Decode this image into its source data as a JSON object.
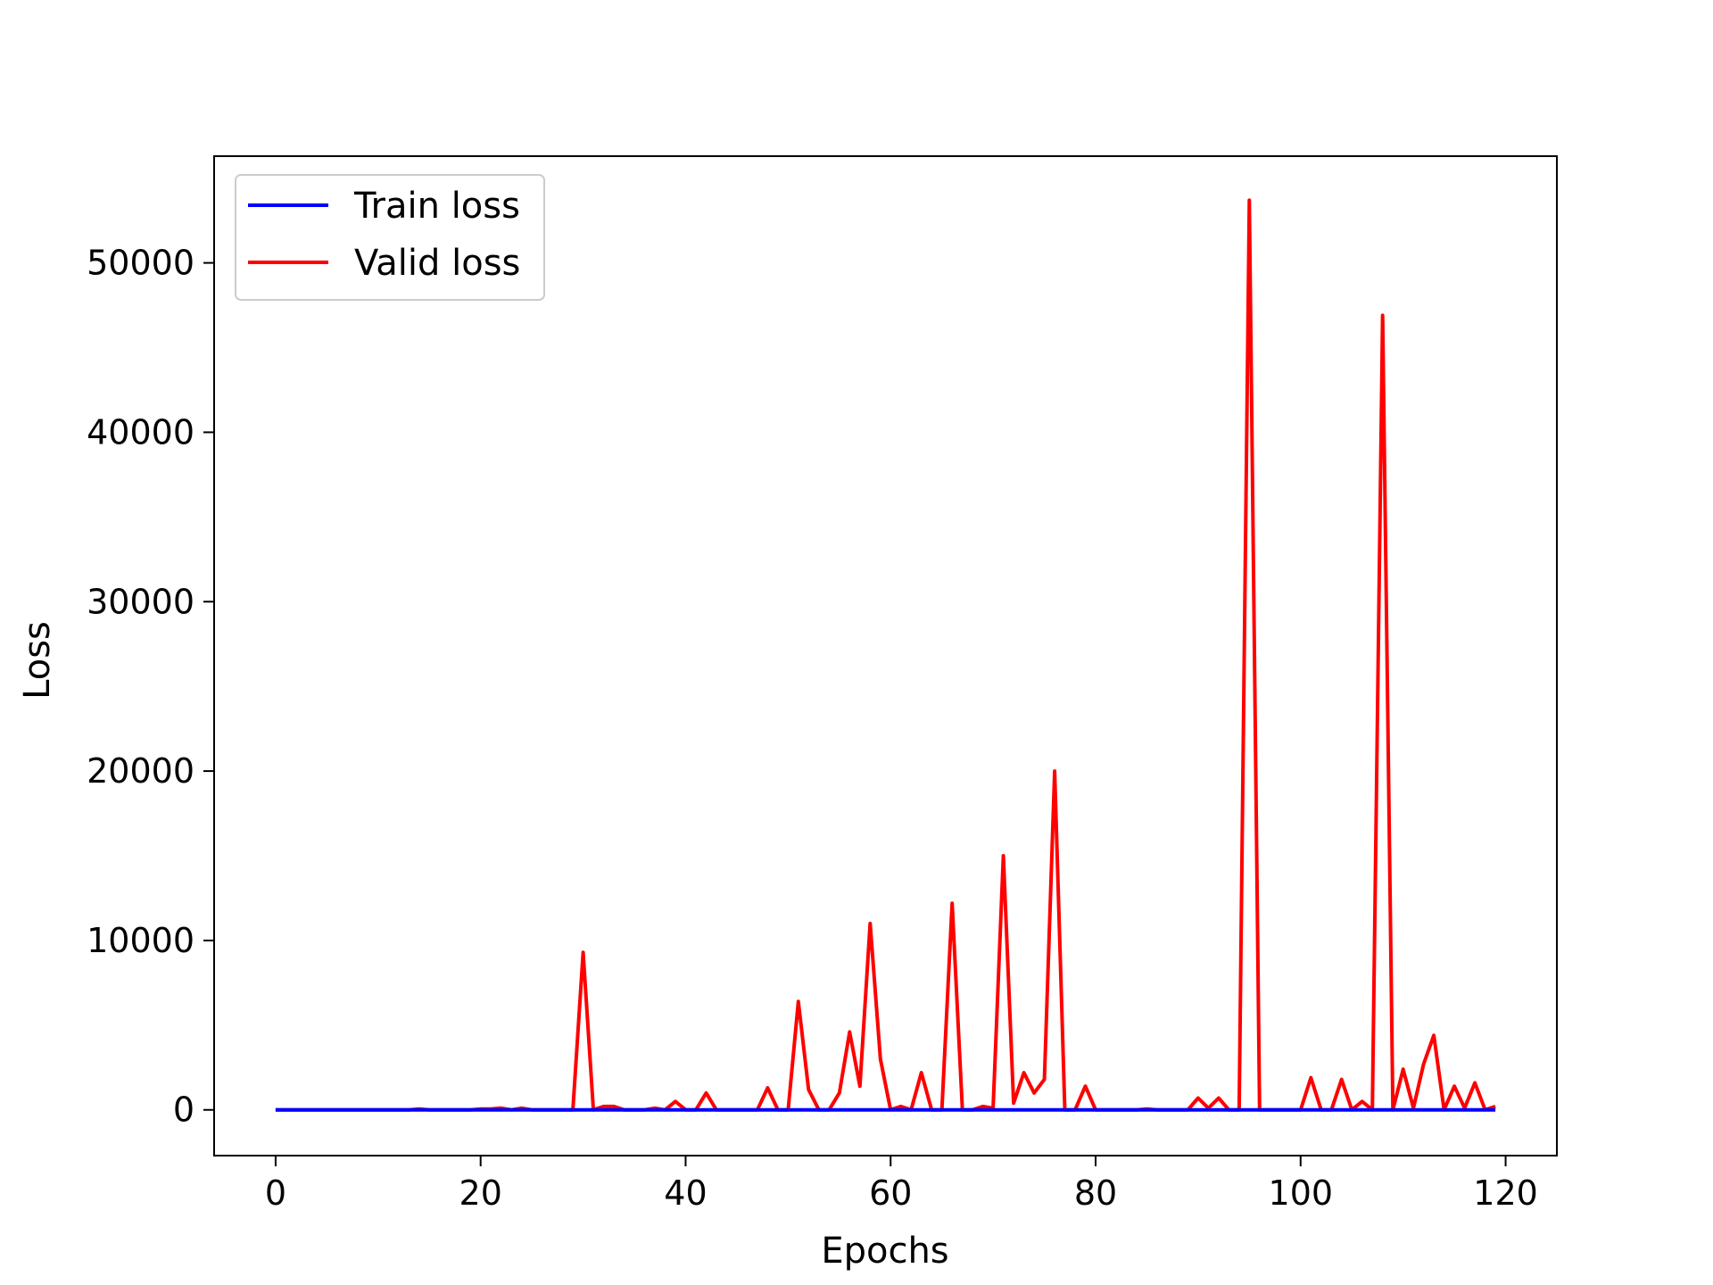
{
  "chart_data": {
    "type": "line",
    "xlabel": "Epochs",
    "ylabel": "Loss",
    "xlim": [
      -6,
      125
    ],
    "ylim": [
      -2700,
      56300
    ],
    "xticks": [
      0,
      20,
      40,
      60,
      80,
      100,
      120
    ],
    "yticks": [
      0,
      10000,
      20000,
      30000,
      40000,
      50000
    ],
    "grid": false,
    "legend": "top-left",
    "series": [
      {
        "name": "Train loss",
        "color": "#0000ff",
        "x": [
          0,
          20,
          40,
          60,
          80,
          100,
          119
        ],
        "y": [
          0,
          0,
          0,
          0,
          0,
          0,
          0
        ]
      },
      {
        "name": "Valid loss",
        "color": "#ff0000",
        "x": [
          0,
          1,
          2,
          3,
          4,
          5,
          6,
          7,
          8,
          9,
          10,
          11,
          12,
          13,
          14,
          15,
          16,
          17,
          18,
          19,
          20,
          21,
          22,
          23,
          24,
          25,
          26,
          27,
          28,
          29,
          30,
          31,
          32,
          33,
          34,
          35,
          36,
          37,
          38,
          39,
          40,
          41,
          42,
          43,
          44,
          45,
          46,
          47,
          48,
          49,
          50,
          51,
          52,
          53,
          54,
          55,
          56,
          57,
          58,
          59,
          60,
          61,
          62,
          63,
          64,
          65,
          66,
          67,
          68,
          69,
          70,
          71,
          72,
          73,
          74,
          75,
          76,
          77,
          78,
          79,
          80,
          81,
          82,
          83,
          84,
          85,
          86,
          87,
          88,
          89,
          90,
          91,
          92,
          93,
          94,
          95,
          96,
          97,
          98,
          99,
          100,
          101,
          102,
          103,
          104,
          105,
          106,
          107,
          108,
          109,
          110,
          111,
          112,
          113,
          114,
          115,
          116,
          117,
          118,
          119
        ],
        "y": [
          0,
          0,
          0,
          0,
          0,
          0,
          0,
          0,
          0,
          0,
          0,
          0,
          0,
          0,
          50,
          0,
          0,
          0,
          0,
          0,
          50,
          50,
          100,
          0,
          100,
          0,
          0,
          0,
          0,
          0,
          9300,
          0,
          200,
          200,
          0,
          0,
          0,
          100,
          0,
          500,
          0,
          0,
          1000,
          0,
          0,
          0,
          0,
          0,
          1300,
          0,
          0,
          6400,
          1200,
          0,
          0,
          1000,
          4600,
          1400,
          11000,
          3000,
          0,
          200,
          0,
          2200,
          0,
          0,
          12200,
          0,
          0,
          200,
          100,
          15000,
          400,
          2200,
          1000,
          1800,
          20000,
          0,
          0,
          1400,
          0,
          0,
          0,
          0,
          0,
          50,
          0,
          0,
          0,
          0,
          700,
          100,
          700,
          0,
          0,
          53700,
          0,
          0,
          0,
          0,
          0,
          1900,
          0,
          0,
          1800,
          0,
          500,
          0,
          46900,
          0,
          2400,
          100,
          2700,
          4400,
          0,
          1400,
          100,
          1600,
          0,
          200
        ]
      }
    ]
  }
}
